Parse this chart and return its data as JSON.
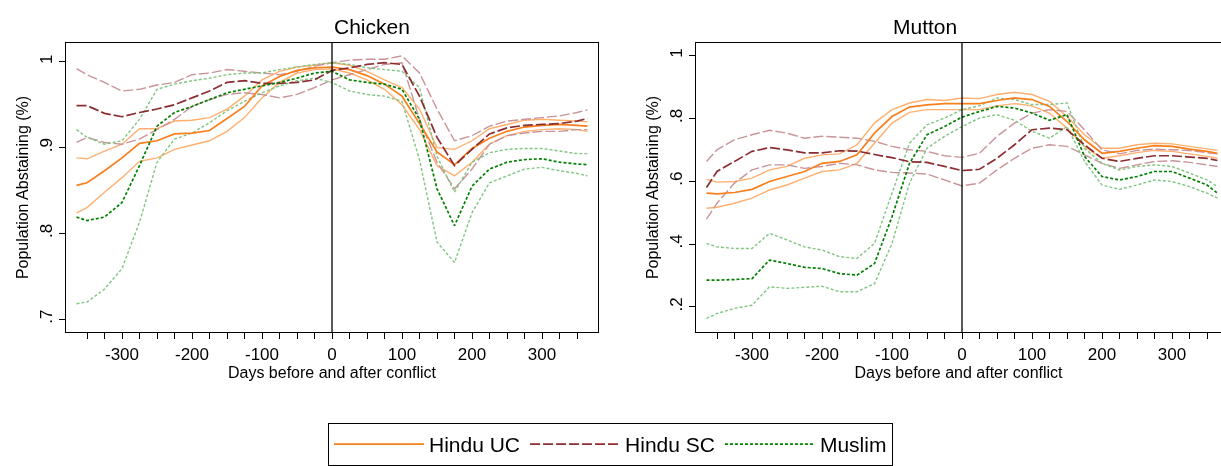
{
  "chart_data": [
    {
      "type": "line",
      "title": "Chicken",
      "xlabel": "Days before and after conflict",
      "ylabel": "Population Abstaining (%)",
      "x": [
        -365,
        -350,
        -325,
        -300,
        -275,
        -250,
        -225,
        -200,
        -175,
        -150,
        -125,
        -100,
        -75,
        -50,
        -25,
        0,
        25,
        50,
        75,
        100,
        125,
        150,
        175,
        200,
        225,
        250,
        275,
        300,
        325,
        350,
        365
      ],
      "xlim": [
        -380,
        380
      ],
      "ylim": [
        0.685,
        1.022
      ],
      "xticks": [
        {
          "value": -350,
          "label": null
        },
        {
          "value": -325,
          "label": null
        },
        -300,
        {
          "value": -275,
          "label": null
        },
        {
          "value": -250,
          "label": null
        },
        {
          "value": -225,
          "label": null
        },
        -200,
        {
          "value": -175,
          "label": null
        },
        {
          "value": -150,
          "label": null
        },
        {
          "value": -125,
          "label": null
        },
        -100,
        {
          "value": -75,
          "label": null
        },
        {
          "value": -50,
          "label": null
        },
        {
          "value": -25,
          "label": null
        },
        0,
        {
          "value": 25,
          "label": null
        },
        {
          "value": 50,
          "label": null
        },
        {
          "value": 75,
          "label": null
        },
        100,
        {
          "value": 125,
          "label": null
        },
        {
          "value": 150,
          "label": null
        },
        {
          "value": 175,
          "label": null
        },
        200,
        {
          "value": 225,
          "label": null
        },
        {
          "value": 250,
          "label": null
        },
        {
          "value": 275,
          "label": null
        },
        300,
        {
          "value": 325,
          "label": null
        },
        {
          "value": 350,
          "label": null
        }
      ],
      "yticks": [
        {
          "value": 0.7,
          "label": ".7"
        },
        {
          "value": 0.8,
          "label": ".8"
        },
        {
          "value": 0.9,
          "label": ".9"
        },
        1
      ],
      "legend": "bottom",
      "marker": "none",
      "ref_lines": [
        {
          "axis": "x",
          "value": 0,
          "color": "#000000",
          "line_style": "solid"
        }
      ],
      "series": [
        {
          "color": "#ffb070",
          "line_style": "solid",
          "values": [
            0.888,
            0.887,
            0.896,
            0.904,
            0.922,
            0.922,
            0.931,
            0.932,
            0.935,
            0.945,
            0.96,
            0.979,
            0.989,
            0.994,
            0.996,
            0.999,
            0.996,
            0.989,
            0.979,
            0.97,
            0.945,
            0.9,
            0.898,
            0.908,
            0.922,
            0.927,
            0.932,
            0.933,
            0.932,
            0.931,
            0.93
          ]
        },
        {
          "color": "#ffb070",
          "line_style": "solid",
          "values": [
            0.824,
            0.83,
            0.848,
            0.865,
            0.884,
            0.888,
            0.898,
            0.903,
            0.908,
            0.919,
            0.935,
            0.958,
            0.976,
            0.987,
            0.991,
            0.992,
            0.987,
            0.979,
            0.968,
            0.95,
            0.921,
            0.879,
            0.867,
            0.883,
            0.904,
            0.914,
            0.919,
            0.921,
            0.922,
            0.921,
            0.919
          ]
        },
        {
          "color": "#c99499",
          "line_style": "dashed",
          "values": [
            0.992,
            0.985,
            0.976,
            0.966,
            0.968,
            0.973,
            0.976,
            0.985,
            0.987,
            0.991,
            0.989,
            0.987,
            0.985,
            0.989,
            0.995,
            0.999,
            1.002,
            1.003,
            1.003,
            1.007,
            0.987,
            0.945,
            0.908,
            0.914,
            0.925,
            0.931,
            0.933,
            0.935,
            0.937,
            0.941,
            0.944
          ]
        },
        {
          "color": "#c99499",
          "line_style": "dashed",
          "values": [
            0.906,
            0.912,
            0.906,
            0.904,
            0.91,
            0.921,
            0.933,
            0.948,
            0.956,
            0.962,
            0.964,
            0.962,
            0.958,
            0.962,
            0.97,
            0.979,
            0.985,
            0.991,
            0.997,
            0.999,
            0.933,
            0.883,
            0.852,
            0.875,
            0.904,
            0.914,
            0.917,
            0.919,
            0.919,
            0.921,
            0.921
          ]
        },
        {
          "color": "#80c580",
          "line_style": "dotted",
          "values": [
            0.921,
            0.912,
            0.904,
            0.908,
            0.933,
            0.968,
            0.974,
            0.978,
            0.981,
            0.985,
            0.987,
            0.987,
            0.991,
            0.994,
            0.997,
            0.999,
            0.997,
            0.993,
            0.991,
            0.989,
            0.97,
            0.89,
            0.848,
            0.883,
            0.894,
            0.898,
            0.899,
            0.899,
            0.896,
            0.893,
            0.893
          ]
        },
        {
          "color": "#80c580",
          "line_style": "dotted",
          "values": [
            0.718,
            0.72,
            0.735,
            0.759,
            0.813,
            0.883,
            0.91,
            0.917,
            0.929,
            0.943,
            0.954,
            0.964,
            0.972,
            0.978,
            0.981,
            0.976,
            0.966,
            0.962,
            0.96,
            0.954,
            0.886,
            0.79,
            0.766,
            0.824,
            0.859,
            0.867,
            0.875,
            0.877,
            0.873,
            0.87,
            0.867
          ]
        },
        {
          "name": "Hindu UC",
          "color": "#f77f1c",
          "line_style": "solid",
          "values": [
            0.856,
            0.859,
            0.873,
            0.888,
            0.905,
            0.908,
            0.916,
            0.917,
            0.92,
            0.934,
            0.948,
            0.972,
            0.983,
            0.99,
            0.993,
            0.994,
            0.991,
            0.984,
            0.974,
            0.96,
            0.928,
            0.895,
            0.88,
            0.899,
            0.911,
            0.919,
            0.924,
            0.926,
            0.927,
            0.926,
            0.925
          ]
        },
        {
          "name": "Hindu SC",
          "color": "#8c2d32",
          "line_style": "dashed",
          "values": [
            0.949,
            0.949,
            0.94,
            0.936,
            0.941,
            0.945,
            0.95,
            0.958,
            0.966,
            0.976,
            0.978,
            0.975,
            0.975,
            0.976,
            0.979,
            0.99,
            0.993,
            0.997,
            0.999,
            0.997,
            0.96,
            0.912,
            0.879,
            0.898,
            0.916,
            0.923,
            0.926,
            0.927,
            0.928,
            0.931,
            0.934
          ]
        },
        {
          "name": "Muslim",
          "color": "#008000",
          "line_style": "dotted",
          "values": [
            0.819,
            0.815,
            0.819,
            0.836,
            0.879,
            0.925,
            0.941,
            0.948,
            0.956,
            0.964,
            0.968,
            0.972,
            0.976,
            0.981,
            0.987,
            0.989,
            0.979,
            0.976,
            0.974,
            0.968,
            0.933,
            0.852,
            0.809,
            0.855,
            0.875,
            0.883,
            0.886,
            0.887,
            0.883,
            0.881,
            0.88
          ]
        }
      ]
    },
    {
      "type": "line",
      "title": "Mutton",
      "xlabel": "Days before and after conflict",
      "ylabel": "Population Abstaining (%)",
      "x": [
        -365,
        -350,
        -325,
        -300,
        -275,
        -250,
        -225,
        -200,
        -175,
        -150,
        -125,
        -100,
        -75,
        -50,
        -25,
        0,
        25,
        50,
        75,
        100,
        125,
        150,
        175,
        200,
        225,
        250,
        275,
        300,
        325,
        350,
        365
      ],
      "xlim": [
        -380,
        370
      ],
      "ylim": [
        0.12,
        1.04
      ],
      "xticks": [
        {
          "value": -350,
          "label": null
        },
        {
          "value": -325,
          "label": null
        },
        -300,
        {
          "value": -275,
          "label": null
        },
        {
          "value": -250,
          "label": null
        },
        {
          "value": -225,
          "label": null
        },
        -200,
        {
          "value": -175,
          "label": null
        },
        {
          "value": -150,
          "label": null
        },
        {
          "value": -125,
          "label": null
        },
        -100,
        {
          "value": -75,
          "label": null
        },
        {
          "value": -50,
          "label": null
        },
        {
          "value": -25,
          "label": null
        },
        0,
        {
          "value": 25,
          "label": null
        },
        {
          "value": 50,
          "label": null
        },
        {
          "value": 75,
          "label": null
        },
        100,
        {
          "value": 125,
          "label": null
        },
        {
          "value": 150,
          "label": null
        },
        {
          "value": 175,
          "label": null
        },
        200,
        {
          "value": 225,
          "label": null
        },
        {
          "value": 250,
          "label": null
        },
        {
          "value": 275,
          "label": null
        },
        300,
        {
          "value": 325,
          "label": null
        },
        {
          "value": 350,
          "label": null
        }
      ],
      "yticks": [
        {
          "value": 0.2,
          "label": ".2"
        },
        {
          "value": 0.4,
          "label": ".4"
        },
        {
          "value": 0.6,
          "label": ".6"
        },
        {
          "value": 0.8,
          "label": ".8"
        },
        1
      ],
      "marker": "none",
      "ref_lines": [
        {
          "axis": "x",
          "value": 0,
          "color": "#000000",
          "line_style": "solid"
        }
      ],
      "series": [
        {
          "color": "#ffb070",
          "line_style": "solid",
          "values": [
            0.606,
            0.597,
            0.599,
            0.61,
            0.636,
            0.647,
            0.673,
            0.684,
            0.687,
            0.716,
            0.785,
            0.828,
            0.849,
            0.86,
            0.857,
            0.865,
            0.863,
            0.876,
            0.883,
            0.876,
            0.854,
            0.806,
            0.748,
            0.705,
            0.705,
            0.716,
            0.721,
            0.719,
            0.711,
            0.703,
            0.698
          ]
        },
        {
          "color": "#ffb070",
          "line_style": "solid",
          "values": [
            0.514,
            0.517,
            0.53,
            0.546,
            0.572,
            0.588,
            0.61,
            0.631,
            0.636,
            0.657,
            0.721,
            0.785,
            0.819,
            0.828,
            0.828,
            0.828,
            0.828,
            0.84,
            0.847,
            0.84,
            0.817,
            0.769,
            0.711,
            0.673,
            0.681,
            0.691,
            0.698,
            0.695,
            0.687,
            0.679,
            0.673
          ]
        },
        {
          "color": "#c99499",
          "line_style": "dashed",
          "values": [
            0.663,
            0.7,
            0.732,
            0.748,
            0.762,
            0.753,
            0.737,
            0.743,
            0.74,
            0.737,
            0.727,
            0.711,
            0.7,
            0.695,
            0.681,
            0.676,
            0.689,
            0.743,
            0.785,
            0.817,
            0.828,
            0.822,
            0.764,
            0.7,
            0.687,
            0.698,
            0.702,
            0.7,
            0.698,
            0.691,
            0.687
          ]
        },
        {
          "color": "#c99499",
          "line_style": "dashed",
          "values": [
            0.479,
            0.53,
            0.594,
            0.636,
            0.652,
            0.652,
            0.641,
            0.647,
            0.657,
            0.652,
            0.636,
            0.628,
            0.626,
            0.623,
            0.604,
            0.585,
            0.594,
            0.636,
            0.673,
            0.705,
            0.716,
            0.711,
            0.684,
            0.657,
            0.641,
            0.652,
            0.663,
            0.665,
            0.66,
            0.652,
            0.647
          ]
        },
        {
          "color": "#80c580",
          "line_style": "dotted",
          "values": [
            0.402,
            0.391,
            0.386,
            0.386,
            0.434,
            0.413,
            0.391,
            0.381,
            0.36,
            0.354,
            0.402,
            0.562,
            0.721,
            0.78,
            0.801,
            0.828,
            0.84,
            0.865,
            0.86,
            0.844,
            0.844,
            0.849,
            0.705,
            0.657,
            0.636,
            0.647,
            0.652,
            0.647,
            0.626,
            0.604,
            0.583
          ]
        },
        {
          "color": "#80c580",
          "line_style": "dotted",
          "values": [
            0.163,
            0.179,
            0.195,
            0.205,
            0.264,
            0.259,
            0.262,
            0.266,
            0.248,
            0.248,
            0.274,
            0.402,
            0.594,
            0.705,
            0.743,
            0.774,
            0.801,
            0.812,
            0.794,
            0.759,
            0.737,
            0.774,
            0.663,
            0.588,
            0.574,
            0.588,
            0.604,
            0.599,
            0.583,
            0.562,
            0.546
          ]
        },
        {
          "name": "Hindu UC",
          "color": "#f77f1c",
          "line_style": "solid",
          "values": [
            0.562,
            0.56,
            0.564,
            0.574,
            0.599,
            0.615,
            0.631,
            0.657,
            0.663,
            0.684,
            0.753,
            0.806,
            0.836,
            0.843,
            0.847,
            0.847,
            0.847,
            0.857,
            0.865,
            0.86,
            0.838,
            0.79,
            0.732,
            0.689,
            0.695,
            0.705,
            0.713,
            0.711,
            0.702,
            0.695,
            0.689
          ]
        },
        {
          "name": "Hindu SC",
          "color": "#8c2d32",
          "line_style": "dashed",
          "values": [
            0.58,
            0.631,
            0.663,
            0.695,
            0.707,
            0.7,
            0.69,
            0.69,
            0.697,
            0.696,
            0.685,
            0.675,
            0.662,
            0.66,
            0.647,
            0.634,
            0.638,
            0.673,
            0.716,
            0.764,
            0.769,
            0.764,
            0.716,
            0.673,
            0.663,
            0.673,
            0.681,
            0.681,
            0.677,
            0.673,
            0.666
          ]
        },
        {
          "name": "Muslim",
          "color": "#008000",
          "line_style": "dotted",
          "values": [
            0.285,
            0.285,
            0.287,
            0.29,
            0.349,
            0.338,
            0.326,
            0.322,
            0.306,
            0.301,
            0.338,
            0.487,
            0.657,
            0.748,
            0.774,
            0.804,
            0.822,
            0.838,
            0.833,
            0.817,
            0.794,
            0.812,
            0.679,
            0.615,
            0.604,
            0.615,
            0.631,
            0.631,
            0.61,
            0.588,
            0.562
          ]
        }
      ]
    }
  ]
}
